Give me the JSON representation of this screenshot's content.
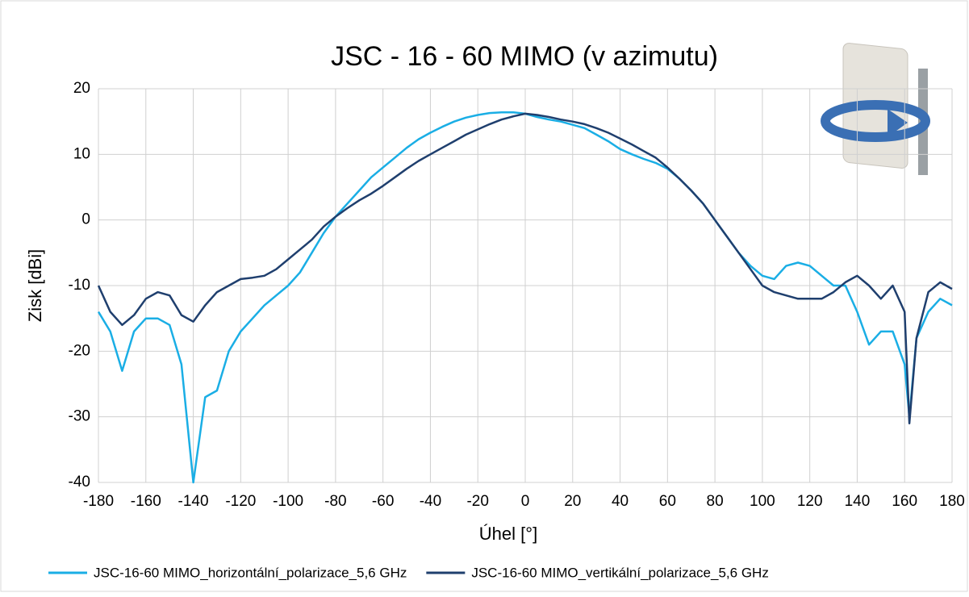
{
  "chart_data": {
    "type": "line",
    "title": "JSC - 16 - 60 MIMO (v azimutu)",
    "xlabel": "Úhel [°]",
    "ylabel": "Zisk [dBi]",
    "x": [
      -180,
      -175,
      -170,
      -165,
      -160,
      -155,
      -150,
      -145,
      -140,
      -135,
      -130,
      -125,
      -120,
      -115,
      -110,
      -105,
      -100,
      -95,
      -90,
      -85,
      -80,
      -75,
      -70,
      -65,
      -60,
      -55,
      -50,
      -45,
      -40,
      -35,
      -30,
      -25,
      -20,
      -15,
      -10,
      -5,
      0,
      5,
      10,
      15,
      20,
      25,
      30,
      35,
      40,
      45,
      50,
      55,
      60,
      65,
      70,
      75,
      80,
      85,
      90,
      95,
      100,
      105,
      110,
      115,
      120,
      125,
      130,
      135,
      140,
      145,
      150,
      155,
      160,
      162,
      165,
      170,
      175,
      180
    ],
    "series": [
      {
        "name": "JSC-16-60 MIMO_horizontální_polarizace_5,6 GHz",
        "color": "#1aaee5",
        "values": [
          -14,
          -17,
          -23,
          -17,
          -15,
          -15,
          -16,
          -22,
          -40,
          -27,
          -26,
          -20,
          -17,
          -15,
          -13,
          -11.5,
          -10,
          -8,
          -5,
          -2,
          0.5,
          2.5,
          4.5,
          6.5,
          8,
          9.5,
          11,
          12.3,
          13.3,
          14.2,
          15,
          15.6,
          16,
          16.3,
          16.4,
          16.4,
          16.2,
          15.7,
          15.3,
          15,
          14.5,
          14,
          13,
          12,
          10.8,
          10,
          9.3,
          8.7,
          7.8,
          6.3,
          4.5,
          2.5,
          0,
          -2.5,
          -5,
          -7,
          -8.5,
          -9,
          -7,
          -6.5,
          -7,
          -8.5,
          -10,
          -10,
          -14,
          -19,
          -17,
          -17,
          -22,
          -30,
          -18,
          -14,
          -12,
          -13
        ]
      },
      {
        "name": "JSC-16-60 MIMO_vertikální_polarizace_5,6 GHz",
        "color": "#1f3f6e",
        "values": [
          -10,
          -14,
          -16,
          -14.5,
          -12,
          -11,
          -11.5,
          -14.5,
          -15.5,
          -13,
          -11,
          -10,
          -9,
          -8.8,
          -8.5,
          -7.5,
          -6,
          -4.5,
          -3,
          -1,
          0.5,
          1.8,
          3,
          4,
          5.2,
          6.5,
          7.8,
          9,
          10,
          11,
          12,
          13,
          13.8,
          14.6,
          15.3,
          15.8,
          16.2,
          16,
          15.7,
          15.3,
          15,
          14.6,
          14,
          13.3,
          12.4,
          11.5,
          10.5,
          9.5,
          8,
          6.3,
          4.5,
          2.5,
          0,
          -2.5,
          -5,
          -7.5,
          -10,
          -11,
          -11.5,
          -12,
          -12,
          -12,
          -11,
          -9.5,
          -8.5,
          -10,
          -12,
          -10,
          -14,
          -31,
          -18,
          -11,
          -9.5,
          -10.5
        ]
      }
    ],
    "xlim": [
      -180,
      180
    ],
    "xticks": [
      -180,
      -160,
      -140,
      -120,
      -100,
      -80,
      -60,
      -40,
      -20,
      0,
      20,
      40,
      60,
      80,
      100,
      120,
      140,
      160,
      180
    ],
    "ylim": [
      -40,
      20
    ],
    "yticks": [
      -40,
      -30,
      -20,
      -10,
      0,
      10,
      20
    ],
    "grid": true,
    "legend": "bottom"
  }
}
